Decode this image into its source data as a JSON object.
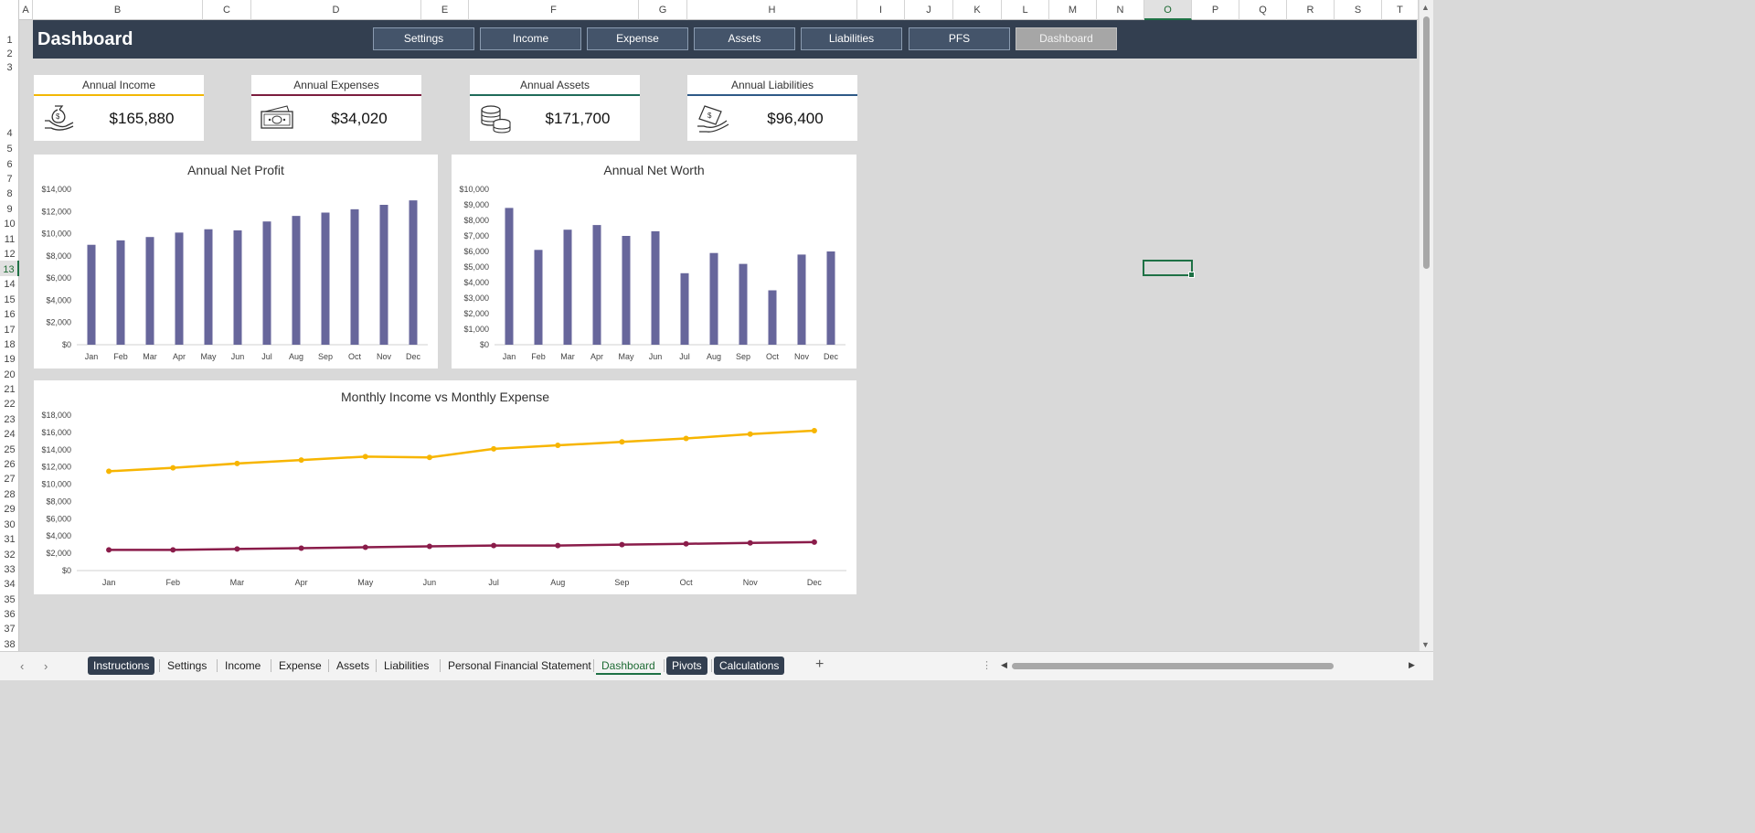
{
  "columns": [
    {
      "label": "A"
    },
    {
      "label": "B"
    },
    {
      "label": "C"
    },
    {
      "label": "D"
    },
    {
      "label": "E"
    },
    {
      "label": "F"
    },
    {
      "label": "G"
    },
    {
      "label": "H"
    },
    {
      "label": "I"
    },
    {
      "label": "J"
    },
    {
      "label": "K"
    },
    {
      "label": "L"
    },
    {
      "label": "M"
    },
    {
      "label": "N"
    },
    {
      "label": "O"
    },
    {
      "label": "P"
    },
    {
      "label": "Q"
    },
    {
      "label": "R"
    },
    {
      "label": "S"
    },
    {
      "label": "T"
    }
  ],
  "selected_column": "O",
  "selected_row": "13",
  "rows": [
    "1",
    "2",
    "3",
    "4",
    "5",
    "6",
    "7",
    "8",
    "9",
    "10",
    "11",
    "12",
    "13",
    "14",
    "15",
    "16",
    "17",
    "18",
    "19",
    "20",
    "21",
    "22",
    "23",
    "24",
    "25",
    "26",
    "27",
    "28",
    "29",
    "30",
    "31",
    "32",
    "33",
    "34",
    "35",
    "36",
    "37",
    "38"
  ],
  "header": {
    "title": "Dashboard",
    "nav": [
      {
        "label": "Settings",
        "active": false
      },
      {
        "label": "Income",
        "active": false
      },
      {
        "label": "Expense",
        "active": false
      },
      {
        "label": "Assets",
        "active": false
      },
      {
        "label": "Liabilities",
        "active": false
      },
      {
        "label": "PFS",
        "active": false
      },
      {
        "label": "Dashboard",
        "active": true
      }
    ]
  },
  "kpis": [
    {
      "title": "Annual Income",
      "value": "$165,880",
      "icon": "money-bag-hand-icon",
      "accent": "#f2b705"
    },
    {
      "title": "Annual Expenses",
      "value": "$34,020",
      "icon": "cash-bills-icon",
      "accent": "#7b1c3e"
    },
    {
      "title": "Annual Assets",
      "value": "$171,700",
      "icon": "coins-stack-icon",
      "accent": "#1f6b5a"
    },
    {
      "title": "Annual Liabilities",
      "value": "$96,400",
      "icon": "hand-cash-icon",
      "accent": "#2e5a87"
    }
  ],
  "chart_data": [
    {
      "type": "bar",
      "title": "Annual Net Profit",
      "categories": [
        "Jan",
        "Feb",
        "Mar",
        "Apr",
        "May",
        "Jun",
        "Jul",
        "Aug",
        "Sep",
        "Oct",
        "Nov",
        "Dec"
      ],
      "values": [
        9000,
        9400,
        9700,
        10100,
        10400,
        10300,
        11100,
        11600,
        11900,
        12200,
        12600,
        13000
      ],
      "ylim": [
        0,
        14000
      ],
      "yticks": [
        "$0",
        "$2,000",
        "$4,000",
        "$6,000",
        "$8,000",
        "$10,000",
        "$12,000",
        "$14,000"
      ],
      "color": "#67669b",
      "grid": false
    },
    {
      "type": "bar",
      "title": "Annual Net Worth",
      "categories": [
        "Jan",
        "Feb",
        "Mar",
        "Apr",
        "May",
        "Jun",
        "Jul",
        "Aug",
        "Sep",
        "Oct",
        "Nov",
        "Dec"
      ],
      "values": [
        8800,
        6100,
        7400,
        7700,
        7000,
        7300,
        4600,
        5900,
        5200,
        3500,
        5800,
        6000
      ],
      "ylim": [
        0,
        10000
      ],
      "yticks": [
        "$0",
        "$1,000",
        "$2,000",
        "$3,000",
        "$4,000",
        "$5,000",
        "$6,000",
        "$7,000",
        "$8,000",
        "$9,000",
        "$10,000"
      ],
      "color": "#67669b",
      "grid": false
    },
    {
      "type": "line",
      "title": "Monthly Income vs Monthly Expense",
      "categories": [
        "Jan",
        "Feb",
        "Mar",
        "Apr",
        "May",
        "Jun",
        "Jul",
        "Aug",
        "Sep",
        "Oct",
        "Nov",
        "Dec"
      ],
      "series": [
        {
          "values": [
            11500,
            11900,
            12400,
            12800,
            13200,
            13100,
            14100,
            14500,
            14900,
            15300,
            15800,
            16200
          ],
          "color": "#f7b500"
        },
        {
          "values": [
            2400,
            2400,
            2500,
            2600,
            2700,
            2800,
            2900,
            2900,
            3000,
            3100,
            3200,
            3300
          ],
          "color": "#8a1c4a"
        }
      ],
      "ylim": [
        0,
        18000
      ],
      "yticks": [
        "$0",
        "$2,000",
        "$4,000",
        "$6,000",
        "$8,000",
        "$10,000",
        "$12,000",
        "$14,000",
        "$16,000",
        "$18,000"
      ],
      "grid": false
    }
  ],
  "sheet_tabs": [
    {
      "label": "Instructions",
      "style": "dark"
    },
    {
      "label": "Settings",
      "style": "plain"
    },
    {
      "label": "Income",
      "style": "plain"
    },
    {
      "label": "Expense",
      "style": "plain"
    },
    {
      "label": "Assets",
      "style": "plain"
    },
    {
      "label": "Liabilities",
      "style": "plain"
    },
    {
      "label": "Personal Financial Statement",
      "style": "plain"
    },
    {
      "label": "Dashboard",
      "style": "active"
    },
    {
      "label": "Pivots",
      "style": "dark"
    },
    {
      "label": "Calculations",
      "style": "dark"
    }
  ],
  "tab_nav": {
    "prev": "‹",
    "next": "›",
    "add": "+",
    "more": "⋮"
  }
}
